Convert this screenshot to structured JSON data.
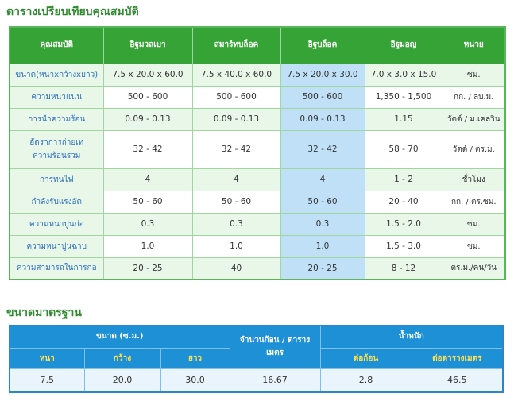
{
  "comparison": {
    "title": "ตารางเปรียบเทียบคุณสมบัติ",
    "headers": [
      "คุณสมบัติ",
      "อิฐมวลเบา",
      "สมาร์ทบล็อค",
      "อิฐบล็อค",
      "อิฐมอญ",
      "หน่วย"
    ],
    "rows": [
      {
        "label": "ขนาด(หนาxกว้างxยาว)",
        "values": [
          "7.5 x 20.0 x 60.0",
          "7.5 x 40.0 x 60.0",
          "7.5 x 20.0 x 30.0",
          "7.0 x 3.0 x 15.0"
        ],
        "unit": "ซม."
      },
      {
        "label": "ความหนาแน่น",
        "values": [
          "500 - 600",
          "500 - 600",
          "500 - 600",
          "1,350 - 1,500"
        ],
        "unit": "กก. / ลบ.ม."
      },
      {
        "label": "การนำความร้อน",
        "values": [
          "0.09 - 0.13",
          "0.09 - 0.13",
          "0.09 - 0.13",
          "1.15"
        ],
        "unit": "วัตต์ / ม.เคลวิน"
      },
      {
        "label": "อัตราการถ่ายเทความร้อนรวม",
        "values": [
          "32 - 42",
          "32 - 42",
          "32 - 42",
          "58 - 70"
        ],
        "unit": "วัตต์ / ตร.ม."
      },
      {
        "label": "การทนไฟ",
        "values": [
          "4",
          "4",
          "4",
          "1 - 2"
        ],
        "unit": "ชั่วโมง"
      },
      {
        "label": "กำลังรับแรงอัด",
        "values": [
          "50 - 60",
          "50 - 60",
          "50 - 60",
          "20 - 40"
        ],
        "unit": "กก. / ตร.ซม."
      },
      {
        "label": "ความหนาปูนก่อ",
        "values": [
          "0.3",
          "0.3",
          "0.3",
          "1.5 - 2.0"
        ],
        "unit": "ซม."
      },
      {
        "label": "ความหนาปูนฉาบ",
        "values": [
          "1.0",
          "1.0",
          "1.0",
          "1.5 - 3.0"
        ],
        "unit": "ซม."
      },
      {
        "label": "ความสามารถในการก่อ",
        "values": [
          "20 - 25",
          "40",
          "20 - 25",
          "8 - 12"
        ],
        "unit": "ตร.ม./คน/วัน"
      }
    ]
  },
  "standard": {
    "title": "ขนาดมาตรฐาน",
    "size_header": "ขนาด (ซ.ม.)",
    "count_header": "จำนวนก้อน / ตารางเมตร",
    "weight_header": "น้ำหนัก",
    "sub_headers": [
      "หนา",
      "กว้าง",
      "ยาว",
      "ต่อก้อน",
      "ต่อตารางเมตร"
    ],
    "values": [
      "7.5",
      "20.0",
      "30.0",
      "16.67",
      "2.8",
      "46.5"
    ]
  },
  "colors": {
    "green_header": "#35a335",
    "light_green": "#e8f7e8",
    "highlight_blue": "#bfe0f7",
    "blue_header": "#1e90d6",
    "yellow_text": "#ffe14d",
    "label_blue": "#2f6fbf",
    "title_green": "#2e8b2e"
  }
}
